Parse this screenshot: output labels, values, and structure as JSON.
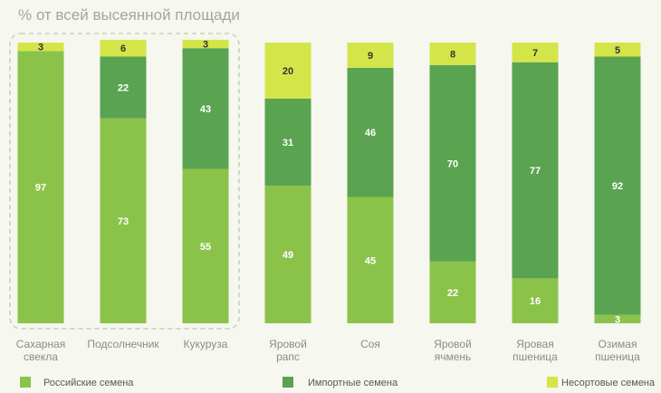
{
  "chart_data": {
    "type": "bar",
    "stacked": true,
    "percent": true,
    "title": "% от всей высеянной площади",
    "categories": [
      [
        "Сахарная",
        "свекла"
      ],
      [
        "Подсолнечник"
      ],
      [
        "Кукуруза"
      ],
      [
        "Яровой",
        "рапс"
      ],
      [
        "Соя"
      ],
      [
        "Яровой",
        "ячмень"
      ],
      [
        "Яровая",
        "пшеница"
      ],
      [
        "Озимая",
        "пшеница"
      ]
    ],
    "series": [
      {
        "name": "Российские семена",
        "color": "#8bc34a",
        "values": [
          97,
          73,
          55,
          49,
          45,
          22,
          16,
          3
        ]
      },
      {
        "name": "Импортные семена",
        "color": "#5aa350",
        "values": [
          0,
          22,
          43,
          31,
          46,
          70,
          77,
          92
        ]
      },
      {
        "name": "Несортовые семена",
        "color": "#d4e54a",
        "values": [
          3,
          6,
          3,
          20,
          9,
          8,
          7,
          5
        ]
      }
    ],
    "highlight_group": [
      0,
      1,
      2
    ],
    "ylim": [
      0,
      100
    ],
    "legend_position": "bottom",
    "grid": false
  }
}
